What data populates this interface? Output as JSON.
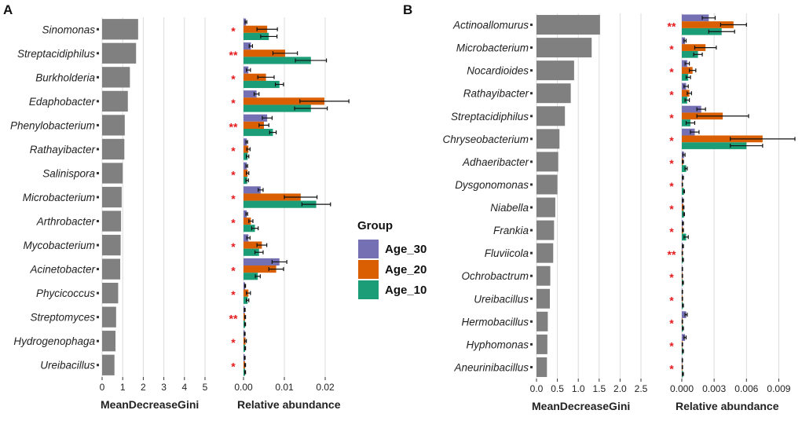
{
  "chart_data": [
    {
      "panel": "A",
      "type": "bar",
      "orientation": "horizontal",
      "xlabel": "MeanDecreaseGini",
      "xlim": [
        0,
        5
      ],
      "xticks": [
        "0",
        "1",
        "2",
        "3",
        "4",
        "5"
      ],
      "xtick_values": [
        0,
        1,
        2,
        3,
        4,
        5
      ],
      "categories": [
        "Sinomonas",
        "Streptacidiphilus",
        "Burkholderia",
        "Edaphobacter",
        "Phenylobacterium",
        "Rathayibacter",
        "Salinispora",
        "Microbacterium",
        "Arthrobacter",
        "Mycobacterium",
        "Acinetobacter",
        "Phycicoccus",
        "Streptomyces",
        "Hydrogenophaga",
        "Ureibacillus"
      ],
      "values": [
        1.75,
        1.65,
        1.35,
        1.25,
        1.1,
        1.08,
        1.0,
        0.95,
        0.92,
        0.9,
        0.88,
        0.78,
        0.68,
        0.65,
        0.6
      ]
    },
    {
      "panel": "A",
      "type": "bar",
      "orientation": "horizontal",
      "xlabel": "Relative abundance",
      "xlim": [
        0,
        0.025
      ],
      "xticks": [
        "0.00",
        "0.01",
        "0.02"
      ],
      "xtick_values": [
        0,
        0.01,
        0.02
      ],
      "categories": [
        "Sinomonas",
        "Streptacidiphilus",
        "Burkholderia",
        "Edaphobacter",
        "Phenylobacterium",
        "Rathayibacter",
        "Salinispora",
        "Microbacterium",
        "Arthrobacter",
        "Mycobacterium",
        "Acinetobacter",
        "Phycicoccus",
        "Streptomyces",
        "Hydrogenophaga",
        "Ureibacillus"
      ],
      "significance": [
        "*",
        "**",
        "*",
        "*",
        "**",
        "*",
        "*",
        "*",
        "*",
        "*",
        "*",
        "*",
        "**",
        "*",
        "*"
      ],
      "series": [
        {
          "name": "Age_30",
          "values": [
            0.0006,
            0.0018,
            0.0012,
            0.0032,
            0.0058,
            0.0008,
            0.0008,
            0.0042,
            0.0008,
            0.0012,
            0.0088,
            0.0004,
            0.0003,
            0.0003,
            0.0003
          ],
          "errors": [
            0.0002,
            0.0004,
            0.0005,
            0.0006,
            0.0012,
            0.0002,
            0.0002,
            0.0006,
            0.0002,
            0.0004,
            0.0018,
            0.0001,
            0.0001,
            0.0001,
            0.0001
          ]
        },
        {
          "name": "Age_20",
          "values": [
            0.0058,
            0.0102,
            0.0055,
            0.0198,
            0.005,
            0.0012,
            0.001,
            0.014,
            0.0018,
            0.0045,
            0.008,
            0.0012,
            0.0004,
            0.0005,
            0.0004
          ],
          "errors": [
            0.0025,
            0.003,
            0.002,
            0.006,
            0.0012,
            0.0004,
            0.0003,
            0.004,
            0.0005,
            0.0012,
            0.0018,
            0.0005,
            0.0001,
            0.0002,
            0.0001
          ]
        },
        {
          "name": "Age_10",
          "values": [
            0.0062,
            0.0165,
            0.0088,
            0.0165,
            0.0072,
            0.001,
            0.0009,
            0.0178,
            0.0028,
            0.0038,
            0.0035,
            0.001,
            0.0004,
            0.0004,
            0.0004
          ],
          "errors": [
            0.002,
            0.0038,
            0.001,
            0.004,
            0.0008,
            0.0003,
            0.0003,
            0.0035,
            0.0008,
            0.001,
            0.0006,
            0.0003,
            0.0001,
            0.0001,
            0.0001
          ]
        }
      ]
    },
    {
      "panel": "B",
      "type": "bar",
      "orientation": "horizontal",
      "xlabel": "MeanDecreaseGini",
      "xlim": [
        0,
        2.5
      ],
      "xticks": [
        "0.0",
        "0.5",
        "1.0",
        "1.5",
        "2.0",
        "2.5"
      ],
      "xtick_values": [
        0,
        0.5,
        1.0,
        1.5,
        2.0,
        2.5
      ],
      "categories": [
        "Actinoallomurus",
        "Microbacterium",
        "Nocardioides",
        "Rathayibacter",
        "Streptacidiphilus",
        "Chryseobacterium",
        "Adhaeribacter",
        "Dysgonomonas",
        "Niabella",
        "Frankia",
        "Fluviicola",
        "Ochrobactrum",
        "Ureibacillus",
        "Hermobacillus",
        "Hyphomonas",
        "Aneurinibacillus"
      ],
      "values": [
        1.52,
        1.32,
        0.9,
        0.82,
        0.68,
        0.55,
        0.52,
        0.5,
        0.45,
        0.42,
        0.4,
        0.33,
        0.32,
        0.27,
        0.26,
        0.25
      ]
    },
    {
      "panel": "B",
      "type": "bar",
      "orientation": "horizontal",
      "xlabel": "Relative abundance",
      "xlim": [
        0,
        0.0105
      ],
      "xticks": [
        "0.000",
        "0.003",
        "0.006",
        "0.009"
      ],
      "xtick_values": [
        0,
        0.003,
        0.006,
        0.009
      ],
      "categories": [
        "Actinoallomurus",
        "Microbacterium",
        "Nocardioides",
        "Rathayibacter",
        "Streptacidiphilus",
        "Chryseobacterium",
        "Adhaeribacter",
        "Dysgonomonas",
        "Niabella",
        "Frankia",
        "Fluviicola",
        "Ochrobactrum",
        "Ureibacillus",
        "Hermobacillus",
        "Hyphomonas",
        "Aneurinibacillus"
      ],
      "significance": [
        "**",
        "*",
        "*",
        "*",
        "*",
        "*",
        "*",
        "*",
        "*",
        "*",
        "**",
        "*",
        "*",
        "*",
        "*",
        "*"
      ],
      "series": [
        {
          "name": "Age_30",
          "values": [
            0.0025,
            0.0003,
            0.0005,
            0.0004,
            0.0018,
            0.0012,
            0.0002,
            0.0001,
            0.0001,
            0.0001,
            0.0001,
            5e-05,
            5e-05,
            0.0004,
            0.0003,
            5e-05
          ],
          "errors": [
            0.0006,
            0.0001,
            0.0002,
            0.0002,
            0.0004,
            0.0004,
            0.0001,
            5e-05,
            5e-05,
            5e-05,
            5e-05,
            2e-05,
            2e-05,
            0.0001,
            0.0001,
            2e-05
          ]
        },
        {
          "name": "Age_20",
          "values": [
            0.0048,
            0.0022,
            0.001,
            0.0007,
            0.0038,
            0.0075,
            0.0001,
            5e-05,
            0.00015,
            0.0001,
            5e-05,
            5e-05,
            5e-05,
            5e-05,
            5e-05,
            5e-05
          ],
          "errors": [
            0.0012,
            0.001,
            0.0003,
            0.0002,
            0.0024,
            0.003,
            5e-05,
            2e-05,
            5e-05,
            5e-05,
            2e-05,
            2e-05,
            2e-05,
            2e-05,
            2e-05,
            2e-05
          ]
        },
        {
          "name": "Age_10",
          "values": [
            0.0037,
            0.0015,
            0.0006,
            0.0005,
            0.0008,
            0.006,
            0.0004,
            0.0002,
            0.0002,
            0.0004,
            0.0001,
            0.0001,
            0.0001,
            0.0001,
            0.0001,
            0.0001
          ],
          "errors": [
            0.0012,
            0.0004,
            0.0002,
            0.0002,
            0.0004,
            0.0015,
            0.0001,
            5e-05,
            5e-05,
            0.0002,
            5e-05,
            5e-05,
            5e-05,
            5e-05,
            5e-05,
            5e-05
          ]
        }
      ]
    }
  ],
  "panel_labels": [
    "A",
    "B"
  ],
  "legend": {
    "title": "Group",
    "items": [
      {
        "label": "Age_30",
        "color": "#7570b3"
      },
      {
        "label": "Age_20",
        "color": "#d95f02"
      },
      {
        "label": "Age_10",
        "color": "#1b9e77"
      }
    ]
  },
  "colors": {
    "gini_bar": "#808080",
    "significance": "#e41a1c"
  }
}
